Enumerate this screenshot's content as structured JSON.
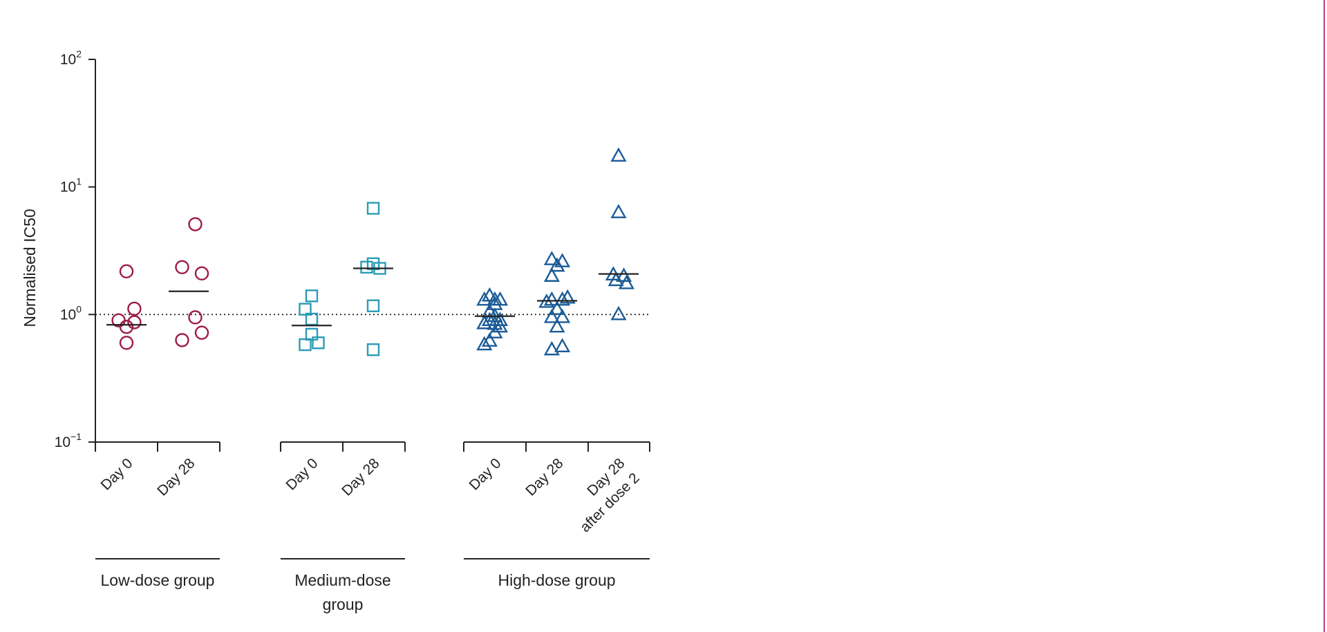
{
  "chart_data": {
    "type": "scatter",
    "ylabel": "Normalised IC50",
    "yscale": "log",
    "ylim": [
      0.1,
      100
    ],
    "yticks": [
      {
        "value": 0.1,
        "base": "10",
        "exp": "−1"
      },
      {
        "value": 1,
        "base": "10",
        "exp": "0"
      },
      {
        "value": 10,
        "base": "10",
        "exp": "1"
      },
      {
        "value": 100,
        "base": "10",
        "exp": "2"
      }
    ],
    "reference_line": {
      "value": 1,
      "style": "dotted"
    },
    "categories": [
      {
        "lines": [
          "Day 0"
        ]
      },
      {
        "lines": [
          "Day 28"
        ]
      },
      {
        "lines": [
          "Day 0"
        ]
      },
      {
        "lines": [
          "Day 28"
        ]
      },
      {
        "lines": [
          "Day 0"
        ]
      },
      {
        "lines": [
          "Day 28"
        ]
      },
      {
        "lines": [
          "Day 28",
          "after dose 2"
        ]
      }
    ],
    "groups": [
      {
        "lines": [
          "Low-dose group"
        ],
        "categories": [
          0,
          1
        ],
        "marker": "circle",
        "color": "#9e1b4a"
      },
      {
        "lines": [
          "Medium-dose",
          "group"
        ],
        "categories": [
          2,
          3
        ],
        "marker": "square",
        "color": "#2a9bb5"
      },
      {
        "lines": [
          "High-dose group"
        ],
        "categories": [
          4,
          5,
          6
        ],
        "marker": "triangle",
        "color": "#1a5b96"
      }
    ],
    "series": [
      {
        "category": 0,
        "group": 0,
        "median": 0.83,
        "points": [
          [
            -0.6,
            0.9
          ],
          [
            0,
            0.8
          ],
          [
            0.6,
            0.87
          ],
          [
            0.6,
            1.11
          ],
          [
            0,
            2.18
          ],
          [
            0,
            0.6
          ]
        ]
      },
      {
        "category": 1,
        "group": 0,
        "median": 1.52,
        "points": [
          [
            0.5,
            5.1
          ],
          [
            -0.5,
            2.35
          ],
          [
            1.0,
            2.1
          ],
          [
            0.5,
            0.95
          ],
          [
            -0.5,
            0.63
          ],
          [
            1.0,
            0.72
          ]
        ]
      },
      {
        "category": 2,
        "group": 1,
        "median": 0.82,
        "points": [
          [
            -0.5,
            1.1
          ],
          [
            0,
            1.4
          ],
          [
            0,
            0.92
          ],
          [
            0,
            0.7
          ],
          [
            -0.5,
            0.58
          ],
          [
            0.5,
            0.6
          ]
        ]
      },
      {
        "category": 3,
        "group": 1,
        "median": 2.3,
        "points": [
          [
            0,
            6.8
          ],
          [
            0,
            2.5
          ],
          [
            -0.5,
            2.35
          ],
          [
            0.5,
            2.3
          ],
          [
            0,
            1.17
          ],
          [
            0,
            0.53
          ]
        ]
      },
      {
        "category": 4,
        "group": 2,
        "median": 0.97,
        "points": [
          [
            -0.8,
            1.3
          ],
          [
            -0.4,
            1.4
          ],
          [
            0,
            1.3
          ],
          [
            0.4,
            1.3
          ],
          [
            0,
            1.2
          ],
          [
            -0.4,
            1.05
          ],
          [
            0,
            0.97
          ],
          [
            -0.4,
            0.9
          ],
          [
            0.4,
            0.9
          ],
          [
            -0.8,
            0.85
          ],
          [
            0,
            0.84
          ],
          [
            0.4,
            0.8
          ],
          [
            0,
            0.72
          ],
          [
            -0.4,
            0.62
          ],
          [
            -0.8,
            0.58
          ]
        ]
      },
      {
        "category": 5,
        "group": 2,
        "median": 1.28,
        "points": [
          [
            -0.4,
            2.7
          ],
          [
            0.4,
            2.6
          ],
          [
            0,
            2.4
          ],
          [
            -0.4,
            2.0
          ],
          [
            -0.8,
            1.25
          ],
          [
            -0.4,
            1.3
          ],
          [
            0.4,
            1.3
          ],
          [
            0.8,
            1.35
          ],
          [
            0,
            1.1
          ],
          [
            -0.4,
            0.95
          ],
          [
            0.4,
            0.95
          ],
          [
            0,
            0.8
          ],
          [
            -0.4,
            0.53
          ],
          [
            0.4,
            0.56
          ]
        ]
      },
      {
        "category": 6,
        "group": 2,
        "median": 2.08,
        "points": [
          [
            0,
            17.5
          ],
          [
            0,
            6.3
          ],
          [
            -0.4,
            2.05
          ],
          [
            0.4,
            2.0
          ],
          [
            -0.2,
            1.85
          ],
          [
            0.6,
            1.75
          ],
          [
            0,
            1.0
          ]
        ]
      }
    ]
  }
}
